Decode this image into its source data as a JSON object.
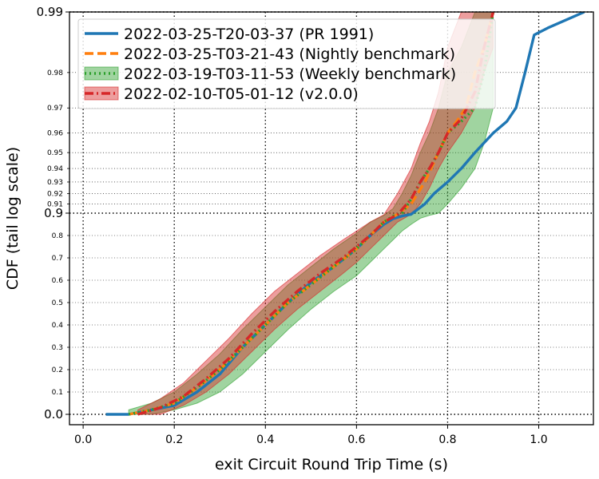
{
  "chart_data": {
    "type": "line",
    "xlabel": "exit Circuit Round Trip Time (s)",
    "ylabel": "CDF (tail log scale)",
    "xlim": [
      -0.03,
      1.12
    ],
    "x_ticks": [
      "0.0",
      "0.2",
      "0.4",
      "0.6",
      "0.8",
      "1.0"
    ],
    "x_tick_values": [
      0.0,
      0.2,
      0.4,
      0.6,
      0.8,
      1.0
    ],
    "y_scale": "linear below 0.9, log tail above 0.9",
    "y_major_ticks": [
      {
        "value": 0.0,
        "label": "0.0"
      },
      {
        "value": 0.9,
        "label": "0.9"
      },
      {
        "value": 0.99,
        "label": "0.99"
      }
    ],
    "y_minor_ticks": [
      {
        "value": 0.1,
        "label": "0.1"
      },
      {
        "value": 0.2,
        "label": "0.2"
      },
      {
        "value": 0.3,
        "label": "0.3"
      },
      {
        "value": 0.4,
        "label": "0.4"
      },
      {
        "value": 0.5,
        "label": "0.5"
      },
      {
        "value": 0.6,
        "label": "0.6"
      },
      {
        "value": 0.7,
        "label": "0.7"
      },
      {
        "value": 0.8,
        "label": "0.8"
      },
      {
        "value": 0.91,
        "label": "0.91"
      },
      {
        "value": 0.92,
        "label": "0.92"
      },
      {
        "value": 0.93,
        "label": "0.93"
      },
      {
        "value": 0.94,
        "label": "0.94"
      },
      {
        "value": 0.95,
        "label": "0.95"
      },
      {
        "value": 0.96,
        "label": "0.96"
      },
      {
        "value": 0.97,
        "label": "0.97"
      },
      {
        "value": 0.98,
        "label": "0.98"
      }
    ],
    "grid": "dotted",
    "legend_position": "top-left",
    "series": [
      {
        "name": "2022-03-25-T20-03-37 (PR 1991)",
        "color": "#1f77b4",
        "style": "solid",
        "x": [
          0.05,
          0.1,
          0.15,
          0.2,
          0.25,
          0.3,
          0.35,
          0.4,
          0.45,
          0.5,
          0.55,
          0.6,
          0.63,
          0.66,
          0.68,
          0.7,
          0.72,
          0.75,
          0.77,
          0.8,
          0.83,
          0.86,
          0.9,
          0.93,
          0.95,
          0.97,
          0.99,
          1.02,
          1.1
        ],
        "y": [
          0.0,
          0.0,
          0.02,
          0.04,
          0.1,
          0.18,
          0.3,
          0.4,
          0.5,
          0.59,
          0.66,
          0.74,
          0.8,
          0.85,
          0.875,
          0.887,
          0.895,
          0.91,
          0.92,
          0.93,
          0.94,
          0.95,
          0.96,
          0.965,
          0.97,
          0.98,
          0.987,
          0.988,
          0.99
        ]
      },
      {
        "name": "2022-03-25-T03-21-43 (Nightly benchmark)",
        "color": "#ff7f0e",
        "style": "dashed",
        "x": [
          0.1,
          0.15,
          0.2,
          0.25,
          0.3,
          0.35,
          0.4,
          0.45,
          0.5,
          0.55,
          0.6,
          0.63,
          0.66,
          0.69,
          0.72,
          0.75,
          0.78,
          0.8,
          0.82,
          0.84,
          0.86,
          0.88,
          0.9
        ],
        "y": [
          0.0,
          0.02,
          0.05,
          0.12,
          0.2,
          0.3,
          0.4,
          0.5,
          0.58,
          0.66,
          0.74,
          0.8,
          0.86,
          0.895,
          0.91,
          0.93,
          0.95,
          0.96,
          0.965,
          0.97,
          0.98,
          0.985,
          0.99
        ]
      },
      {
        "name": "2022-03-19-T03-11-53 (Weekly benchmark)",
        "color": "#2ca02c",
        "style": "dotted",
        "band": true,
        "x": [
          0.1,
          0.15,
          0.2,
          0.25,
          0.3,
          0.35,
          0.4,
          0.45,
          0.5,
          0.55,
          0.6,
          0.63,
          0.66,
          0.68,
          0.7,
          0.72,
          0.74,
          0.76,
          0.78,
          0.8,
          0.83,
          0.86,
          0.88,
          0.9
        ],
        "y": [
          0.0,
          0.02,
          0.05,
          0.12,
          0.2,
          0.3,
          0.4,
          0.5,
          0.58,
          0.66,
          0.74,
          0.8,
          0.86,
          0.887,
          0.9,
          0.915,
          0.93,
          0.94,
          0.95,
          0.96,
          0.965,
          0.97,
          0.98,
          0.99
        ],
        "band_lower": [
          0.0,
          0.0,
          0.02,
          0.05,
          0.1,
          0.18,
          0.28,
          0.38,
          0.47,
          0.55,
          0.62,
          0.68,
          0.74,
          0.78,
          0.82,
          0.85,
          0.877,
          0.89,
          0.9,
          0.91,
          0.925,
          0.94,
          0.955,
          0.97
        ],
        "band_upper": [
          0.02,
          0.05,
          0.1,
          0.18,
          0.27,
          0.38,
          0.48,
          0.58,
          0.66,
          0.74,
          0.81,
          0.86,
          0.89,
          0.905,
          0.92,
          0.935,
          0.95,
          0.96,
          0.97,
          0.98,
          0.985,
          0.99,
          0.99,
          0.99
        ]
      },
      {
        "name": "2022-02-10-T05-01-12 (v2.0.0)",
        "color": "#d62728",
        "style": "dashdot",
        "band": true,
        "x": [
          0.12,
          0.17,
          0.22,
          0.27,
          0.32,
          0.37,
          0.42,
          0.47,
          0.52,
          0.57,
          0.6,
          0.63,
          0.66,
          0.69,
          0.72,
          0.74,
          0.76,
          0.78,
          0.8,
          0.83,
          0.86,
          0.88,
          0.9
        ],
        "y": [
          0.0,
          0.03,
          0.08,
          0.16,
          0.25,
          0.36,
          0.46,
          0.55,
          0.63,
          0.7,
          0.75,
          0.8,
          0.86,
          0.893,
          0.915,
          0.93,
          0.94,
          0.95,
          0.96,
          0.966,
          0.975,
          0.985,
          0.99
        ],
        "band_lower": [
          0.0,
          0.0,
          0.04,
          0.1,
          0.18,
          0.28,
          0.38,
          0.47,
          0.55,
          0.63,
          0.68,
          0.74,
          0.8,
          0.86,
          0.895,
          0.91,
          0.925,
          0.94,
          0.95,
          0.96,
          0.97,
          0.98,
          0.985
        ],
        "band_upper": [
          0.02,
          0.07,
          0.14,
          0.24,
          0.34,
          0.45,
          0.55,
          0.63,
          0.71,
          0.78,
          0.82,
          0.86,
          0.893,
          0.92,
          0.94,
          0.955,
          0.965,
          0.975,
          0.985,
          0.99,
          0.99,
          0.99,
          0.99
        ]
      }
    ]
  }
}
